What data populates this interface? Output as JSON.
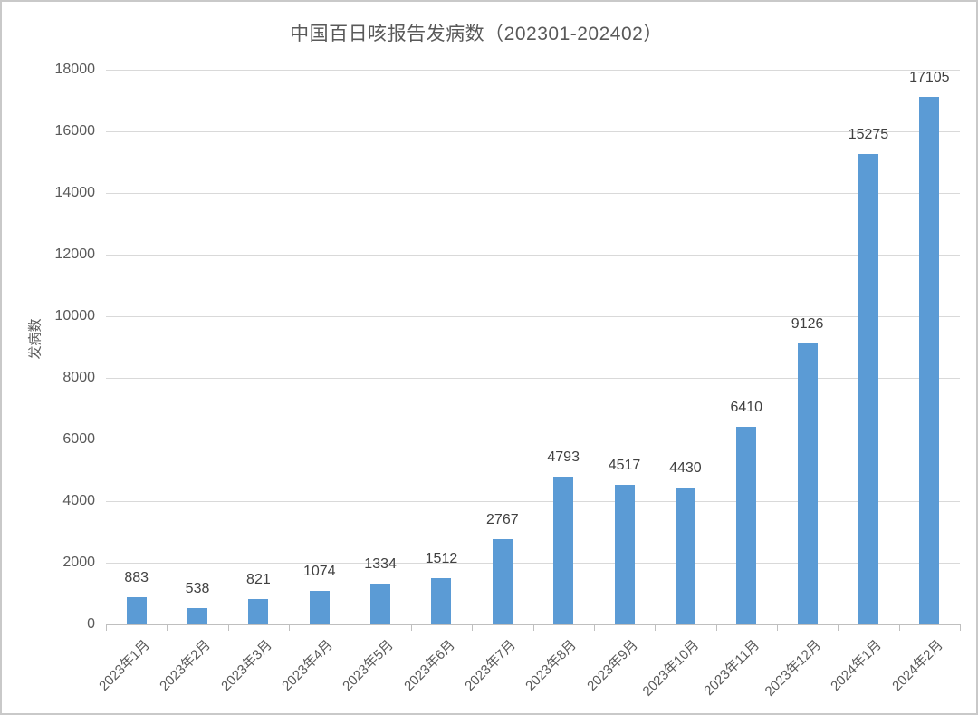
{
  "chart_data": {
    "type": "bar",
    "title": "中国百日咳报告发病数（202301-202402）",
    "ylabel": "发病数",
    "xlabel": "",
    "categories": [
      "2023年1月",
      "2023年2月",
      "2023年3月",
      "2023年4月",
      "2023年5月",
      "2023年6月",
      "2023年7月",
      "2023年8月",
      "2023年9月",
      "2023年10月",
      "2023年11月",
      "2023年12月",
      "2024年1月",
      "2024年2月"
    ],
    "values": [
      883,
      538,
      821,
      1074,
      1334,
      1512,
      2767,
      4793,
      4517,
      4430,
      6410,
      9126,
      15275,
      17105
    ],
    "ylim": [
      0,
      18000
    ],
    "y_tick_step": 2000,
    "y_tick_labels": [
      "0",
      "2000",
      "4000",
      "6000",
      "8000",
      "10000",
      "12000",
      "14000",
      "16000",
      "18000"
    ],
    "data_labels_shown": true,
    "grid": "horizontal",
    "legend": "none",
    "x_label_rotation_deg": 45,
    "bar_color": "#5B9BD5",
    "gridline_color": "#D9D9D9",
    "axis_line_color": "#BFBFBF",
    "axis_text_color": "#595959",
    "data_label_color": "#404040"
  }
}
